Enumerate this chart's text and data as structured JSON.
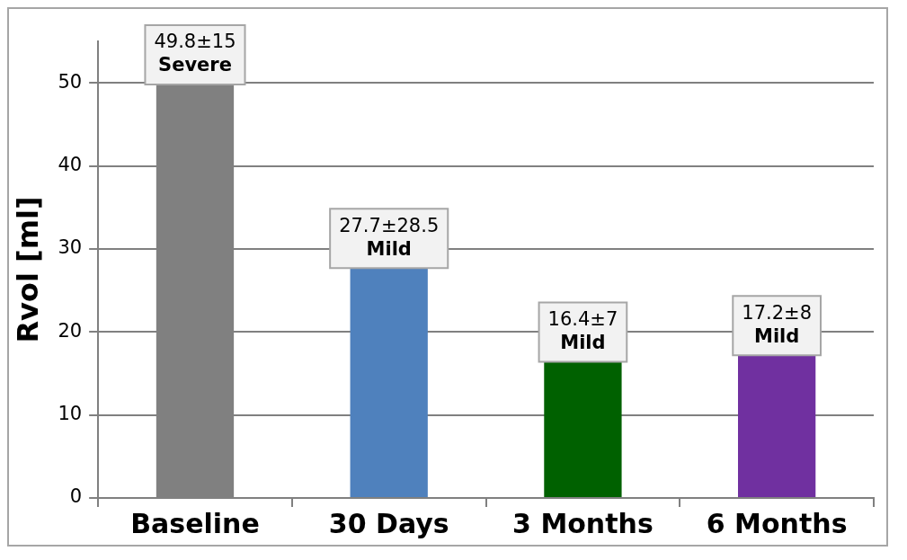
{
  "chart_data": {
    "type": "bar",
    "ylabel": "Rvol [ml]",
    "categories": [
      "Baseline",
      "30 Days",
      "3 Months",
      "6 Months"
    ],
    "values": [
      49.8,
      27.7,
      16.4,
      17.2
    ],
    "colors": [
      "#808080",
      "#4f81bd",
      "#006100",
      "#7030a0"
    ],
    "value_labels": [
      "49.8±15\nSevere",
      "27.7±28.5\nMild",
      "16.4±7\nMild",
      "17.2±8\nMild"
    ],
    "ylim": [
      0,
      55
    ],
    "yticks": [
      0,
      10,
      20,
      30,
      40,
      50
    ],
    "grid": "y",
    "legend": false
  }
}
